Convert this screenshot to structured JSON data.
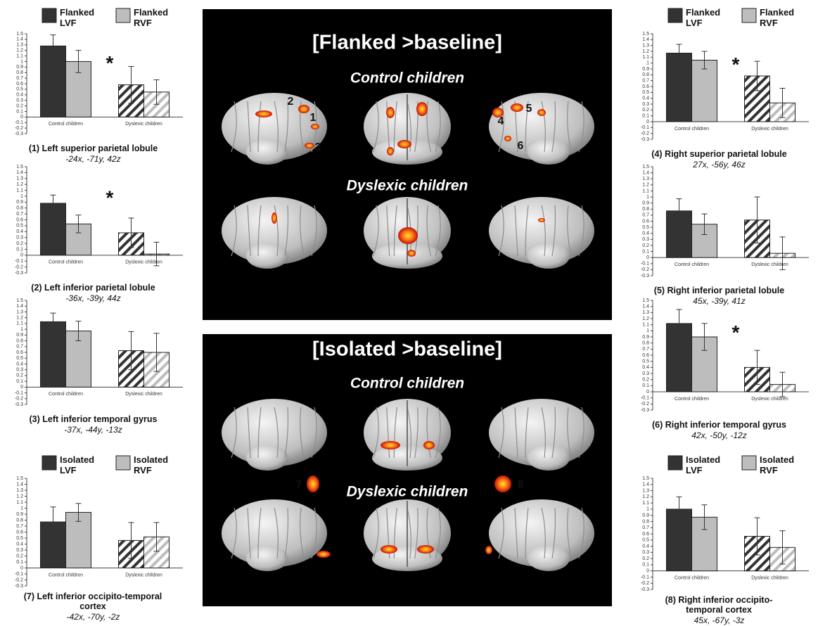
{
  "chart_data": [
    {
      "type": "bar",
      "title": "(1) Left superior parietal lobule",
      "subtitle": "-24x, -71y, 42z",
      "categories": [
        "Control children",
        "Dyslexic children"
      ],
      "series": [
        {
          "name": "Flanked LVF",
          "color": "#333333",
          "values": [
            1.28,
            0.58
          ],
          "errors": [
            0.2,
            0.33
          ]
        },
        {
          "name": "Flanked RVF",
          "color": "#bdbdbd",
          "values": [
            1.0,
            0.45
          ],
          "errors": [
            0.2,
            0.22
          ]
        }
      ],
      "ylim": [
        -0.3,
        1.5
      ],
      "yticks": [
        -0.3,
        -0.2,
        -0.1,
        0,
        0.1,
        0.2,
        0.3,
        0.4,
        0.5,
        0.6,
        0.7,
        0.8,
        0.9,
        1,
        1.1,
        1.2,
        1.3,
        1.4,
        1.5
      ],
      "annotation": "*"
    },
    {
      "type": "bar",
      "title": "(2) Left inferior parietal lobule",
      "subtitle": "-36x, -39y, 44z",
      "categories": [
        "Control children",
        "Dyslexic children"
      ],
      "series": [
        {
          "color": "#333333",
          "values": [
            0.88,
            0.38
          ],
          "errors": [
            0.14,
            0.25
          ]
        },
        {
          "color": "#bdbdbd",
          "values": [
            0.53,
            0.02
          ],
          "errors": [
            0.15,
            0.2
          ]
        }
      ],
      "ylim": [
        -0.3,
        1.5
      ],
      "yticks": [
        -0.3,
        -0.2,
        -0.1,
        0,
        0.1,
        0.2,
        0.3,
        0.4,
        0.5,
        0.6,
        0.7,
        0.8,
        0.9,
        1,
        1.1,
        1.2,
        1.3,
        1.4,
        1.5
      ],
      "annotation": "*"
    },
    {
      "type": "bar",
      "title": "(3) Left inferior temporal gyrus",
      "subtitle": "-37x, -44y, -13z",
      "categories": [
        "Control children",
        "Dyslexic children"
      ],
      "series": [
        {
          "color": "#333333",
          "values": [
            1.13,
            0.63
          ],
          "errors": [
            0.15,
            0.33
          ]
        },
        {
          "color": "#bdbdbd",
          "values": [
            0.97,
            0.6
          ],
          "errors": [
            0.17,
            0.33
          ]
        }
      ],
      "ylim": [
        -0.3,
        1.5
      ],
      "yticks": [
        -0.3,
        -0.2,
        -0.1,
        0,
        0.1,
        0.2,
        0.3,
        0.4,
        0.5,
        0.6,
        0.7,
        0.8,
        0.9,
        1,
        1.1,
        1.2,
        1.3,
        1.4,
        1.5
      ]
    },
    {
      "type": "bar",
      "title": "(4) Right superior parietal lobule",
      "subtitle": "27x, -56y, 46z",
      "categories": [
        "Control children",
        "Dyslexic children"
      ],
      "series": [
        {
          "name": "Flanked LVF",
          "color": "#333333",
          "values": [
            1.17,
            0.78
          ],
          "errors": [
            0.15,
            0.25
          ]
        },
        {
          "name": "Flanked RVF",
          "color": "#bdbdbd",
          "values": [
            1.05,
            0.32
          ],
          "errors": [
            0.15,
            0.25
          ]
        }
      ],
      "ylim": [
        -0.3,
        1.5
      ],
      "yticks": [
        -0.3,
        -0.2,
        -0.1,
        0,
        0.1,
        0.2,
        0.3,
        0.4,
        0.5,
        0.6,
        0.7,
        0.8,
        0.9,
        1,
        1.1,
        1.2,
        1.3,
        1.4,
        1.5
      ],
      "annotation": "*"
    },
    {
      "type": "bar",
      "title": "(5) Right inferior parietal lobule",
      "subtitle": "45x, -39y, 41z",
      "categories": [
        "Control children",
        "Dyslexic children"
      ],
      "series": [
        {
          "color": "#333333",
          "values": [
            0.77,
            0.62
          ],
          "errors": [
            0.2,
            0.38
          ]
        },
        {
          "color": "#bdbdbd",
          "values": [
            0.55,
            0.07
          ],
          "errors": [
            0.17,
            0.27
          ]
        }
      ],
      "ylim": [
        -0.3,
        1.5
      ],
      "yticks": [
        -0.3,
        -0.2,
        -0.1,
        0,
        0.1,
        0.2,
        0.3,
        0.4,
        0.5,
        0.6,
        0.7,
        0.8,
        0.9,
        1,
        1.1,
        1.2,
        1.3,
        1.4,
        1.5
      ]
    },
    {
      "type": "bar",
      "title": "(6) Right inferior temporal gyrus",
      "subtitle": "42x, -50y, -12z",
      "categories": [
        "Control children",
        "Dyslexic children"
      ],
      "series": [
        {
          "color": "#333333",
          "values": [
            1.12,
            0.4
          ],
          "errors": [
            0.23,
            0.28
          ]
        },
        {
          "color": "#bdbdbd",
          "values": [
            0.9,
            0.12
          ],
          "errors": [
            0.22,
            0.2
          ]
        }
      ],
      "ylim": [
        -0.3,
        1.5
      ],
      "yticks": [
        -0.3,
        -0.2,
        -0.1,
        0,
        0.1,
        0.2,
        0.3,
        0.4,
        0.5,
        0.6,
        0.7,
        0.8,
        0.9,
        1,
        1.1,
        1.2,
        1.3,
        1.4,
        1.5
      ],
      "annotation": "*"
    },
    {
      "type": "bar",
      "title": "(7) Left inferior occipito-temporal cortex",
      "subtitle": "-42x, -70y, -2z",
      "categories": [
        "Control children",
        "Dyslexic children"
      ],
      "series": [
        {
          "name": "Isolated LVF",
          "color": "#333333",
          "values": [
            0.77,
            0.46
          ],
          "errors": [
            0.25,
            0.3
          ]
        },
        {
          "name": "Isolated RVF",
          "color": "#bdbdbd",
          "values": [
            0.93,
            0.52
          ],
          "errors": [
            0.15,
            0.24
          ]
        }
      ],
      "ylim": [
        -0.3,
        1.5
      ],
      "yticks": [
        -0.3,
        -0.2,
        -0.1,
        0,
        0.1,
        0.2,
        0.3,
        0.4,
        0.5,
        0.6,
        0.7,
        0.8,
        0.9,
        1,
        1.1,
        1.2,
        1.3,
        1.4,
        1.5
      ]
    },
    {
      "type": "bar",
      "title": "(8) Right inferior occipito-temporal cortex",
      "subtitle": "45x, -67y, -3z",
      "categories": [
        "Control children",
        "Dyslexic children"
      ],
      "series": [
        {
          "name": "Isolated LVF",
          "color": "#333333",
          "values": [
            1.0,
            0.56
          ],
          "errors": [
            0.2,
            0.3
          ]
        },
        {
          "name": "Isolated RVF",
          "color": "#bdbdbd",
          "values": [
            0.87,
            0.38
          ],
          "errors": [
            0.2,
            0.27
          ]
        }
      ],
      "ylim": [
        -0.3,
        1.5
      ],
      "yticks": [
        -0.3,
        -0.2,
        -0.1,
        0,
        0.1,
        0.2,
        0.3,
        0.4,
        0.5,
        0.6,
        0.7,
        0.8,
        0.9,
        1,
        1.1,
        1.2,
        1.3,
        1.4,
        1.5
      ]
    }
  ],
  "panels": [
    {
      "title": "[Flanked >baseline]",
      "rows": [
        "Control children",
        "Dyslexic children"
      ],
      "labels": [
        "1",
        "2",
        "3",
        "4",
        "5",
        "6"
      ]
    },
    {
      "title": "[Isolated >baseline]",
      "rows": [
        "Control children",
        "Dyslexic children"
      ],
      "labels": [
        "7",
        "8"
      ]
    }
  ]
}
